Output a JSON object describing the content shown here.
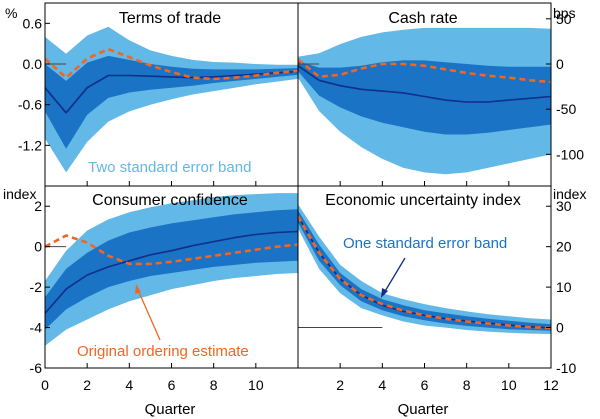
{
  "colors": {
    "outer_band": "#62b8e6",
    "inner_band": "#1a73c4",
    "median_line": "#102e8a",
    "original_line": "#f26522",
    "two_se_text": "#62b8e6",
    "one_se_text": "#1a73c4",
    "original_text": "#f26522"
  },
  "chart_data": [
    {
      "type": "area",
      "title": "Terms of trade",
      "unit_label": "%",
      "unit_side": "left",
      "ylim": [
        -1.8,
        0.9
      ],
      "yticks": [
        0.6,
        0.0,
        -0.6,
        -1.2
      ],
      "ytick_labels": [
        "0.6",
        "0.0",
        "-0.6",
        "-1.2"
      ],
      "x": [
        0,
        1,
        2,
        3,
        4,
        5,
        6,
        7,
        8,
        9,
        10,
        11,
        12
      ],
      "median": [
        -0.35,
        -0.72,
        -0.35,
        -0.17,
        -0.17,
        -0.18,
        -0.19,
        -0.2,
        -0.19,
        -0.17,
        -0.15,
        -0.13,
        -0.11
      ],
      "one_se_low": [
        -0.7,
        -1.25,
        -0.75,
        -0.5,
        -0.42,
        -0.38,
        -0.35,
        -0.32,
        -0.28,
        -0.25,
        -0.22,
        -0.19,
        -0.16
      ],
      "one_se_high": [
        0.0,
        -0.25,
        0.02,
        0.12,
        0.06,
        0.0,
        -0.04,
        -0.07,
        -0.08,
        -0.08,
        -0.08,
        -0.07,
        -0.06
      ],
      "two_se_low": [
        -1.1,
        -1.6,
        -1.15,
        -0.85,
        -0.7,
        -0.6,
        -0.52,
        -0.45,
        -0.4,
        -0.35,
        -0.3,
        -0.26,
        -0.22
      ],
      "two_se_high": [
        0.4,
        0.15,
        0.42,
        0.55,
        0.35,
        0.2,
        0.12,
        0.06,
        0.03,
        0.02,
        0.0,
        -0.01,
        -0.01
      ],
      "original_estimate": [
        0.08,
        -0.2,
        0.08,
        0.22,
        0.1,
        -0.02,
        -0.12,
        -0.2,
        -0.22,
        -0.2,
        -0.17,
        -0.13,
        -0.1
      ],
      "annotation": "Two standard error band"
    },
    {
      "type": "area",
      "title": "Cash rate",
      "unit_label": "bps",
      "unit_side": "right",
      "ylim": [
        -135,
        67.5
      ],
      "yticks": [
        50,
        0,
        -50,
        -100
      ],
      "ytick_labels": [
        "50",
        "0",
        "-50",
        "-100"
      ],
      "x": [
        0,
        1,
        2,
        3,
        4,
        5,
        6,
        7,
        8,
        9,
        10,
        11,
        12
      ],
      "median": [
        -2,
        -18,
        -24,
        -28,
        -30,
        -32,
        -36,
        -40,
        -42,
        -42,
        -40,
        -38,
        -36
      ],
      "one_se_low": [
        -8,
        -35,
        -48,
        -58,
        -65,
        -70,
        -75,
        -78,
        -78,
        -76,
        -73,
        -70,
        -67
      ],
      "one_se_high": [
        3,
        -4,
        -4,
        -2,
        2,
        4,
        4,
        2,
        0,
        -2,
        -3,
        -3,
        -3
      ],
      "two_se_low": [
        -15,
        -52,
        -75,
        -92,
        -105,
        -115,
        -120,
        -122,
        -120,
        -115,
        -110,
        -105,
        -100
      ],
      "two_se_high": [
        8,
        12,
        22,
        30,
        35,
        38,
        40,
        40,
        40,
        40,
        40,
        40,
        39
      ],
      "original_estimate": [
        5,
        -14,
        -12,
        -5,
        0,
        0,
        -2,
        -6,
        -10,
        -13,
        -15,
        -18,
        -20
      ]
    },
    {
      "type": "area",
      "title": "Consumer confidence",
      "unit_label": "index",
      "unit_side": "left",
      "ylim": [
        -6,
        3
      ],
      "yticks": [
        2,
        0,
        -2,
        -4,
        -6
      ],
      "ytick_labels": [
        "2",
        "0",
        "-2",
        "-4",
        "-6"
      ],
      "x": [
        0,
        1,
        2,
        3,
        4,
        5,
        6,
        7,
        8,
        9,
        10,
        11,
        12
      ],
      "median": [
        -3.3,
        -2.1,
        -1.4,
        -1.0,
        -0.7,
        -0.4,
        -0.2,
        0.05,
        0.25,
        0.45,
        0.6,
        0.7,
        0.75
      ],
      "one_se_low": [
        -4.1,
        -3.1,
        -2.5,
        -2.0,
        -1.7,
        -1.45,
        -1.3,
        -1.15,
        -1.0,
        -0.9,
        -0.8,
        -0.75,
        -0.7
      ],
      "one_se_high": [
        -2.5,
        -1.1,
        -0.3,
        0.3,
        0.7,
        0.95,
        1.15,
        1.3,
        1.45,
        1.6,
        1.7,
        1.8,
        1.85
      ],
      "two_se_low": [
        -4.9,
        -4.1,
        -3.6,
        -3.1,
        -2.7,
        -2.4,
        -2.1,
        -1.9,
        -1.7,
        -1.55,
        -1.45,
        -1.35,
        -1.3
      ],
      "two_se_high": [
        -1.7,
        -0.2,
        0.8,
        1.35,
        1.7,
        1.95,
        2.15,
        2.3,
        2.45,
        2.55,
        2.6,
        2.65,
        2.65
      ],
      "original_estimate": [
        0.0,
        0.55,
        0.2,
        -0.45,
        -0.85,
        -0.85,
        -0.75,
        -0.6,
        -0.45,
        -0.3,
        -0.15,
        0.0,
        0.1
      ],
      "annotation": "Original ordering estimate"
    },
    {
      "type": "area",
      "title": "Economic uncertainty index",
      "unit_label": "index",
      "unit_side": "right",
      "ylim": [
        -10,
        35
      ],
      "yticks": [
        30,
        20,
        10,
        0,
        -10
      ],
      "ytick_labels": [
        "30",
        "20",
        "10",
        "0",
        "-10"
      ],
      "x": [
        0,
        1,
        2,
        3,
        4,
        5,
        6,
        7,
        8,
        9,
        10,
        11,
        12
      ],
      "x_tick_labels": [
        "",
        "2",
        "4",
        "6",
        "8",
        "10",
        "12"
      ],
      "median": [
        27.5,
        18.5,
        12.0,
        8.0,
        5.5,
        4.0,
        3.0,
        2.2,
        1.6,
        1.1,
        0.6,
        0.2,
        -0.1
      ],
      "one_se_low": [
        26.0,
        16.5,
        10.5,
        6.5,
        4.3,
        2.8,
        1.8,
        1.0,
        0.4,
        0.0,
        -0.4,
        -0.6,
        -0.8
      ],
      "one_se_high": [
        29.0,
        20.5,
        13.5,
        9.5,
        7.0,
        5.5,
        4.3,
        3.5,
        2.8,
        2.2,
        1.7,
        1.2,
        0.8
      ],
      "two_se_low": [
        24.5,
        14.5,
        8.5,
        4.8,
        3.0,
        1.5,
        0.5,
        0.0,
        -0.6,
        -1.0,
        -1.3,
        -1.5,
        -1.6
      ],
      "two_se_high": [
        30.5,
        22.5,
        15.5,
        11.5,
        8.5,
        7.0,
        5.8,
        4.8,
        4.0,
        3.3,
        2.8,
        2.3,
        2.0
      ],
      "original_estimate": [
        27.5,
        18.5,
        12.0,
        8.0,
        5.8,
        4.2,
        3.0,
        2.2,
        1.5,
        1.0,
        0.5,
        0.1,
        -0.1
      ],
      "annotation": "One standard error band"
    }
  ],
  "x_axis": {
    "label": "Quarter",
    "xlim": [
      0,
      12
    ],
    "left_tick_labels": [
      "0",
      "2",
      "4",
      "6",
      "8",
      "10"
    ],
    "right_tick_labels": [
      "2",
      "4",
      "6",
      "8",
      "10",
      "12"
    ]
  }
}
